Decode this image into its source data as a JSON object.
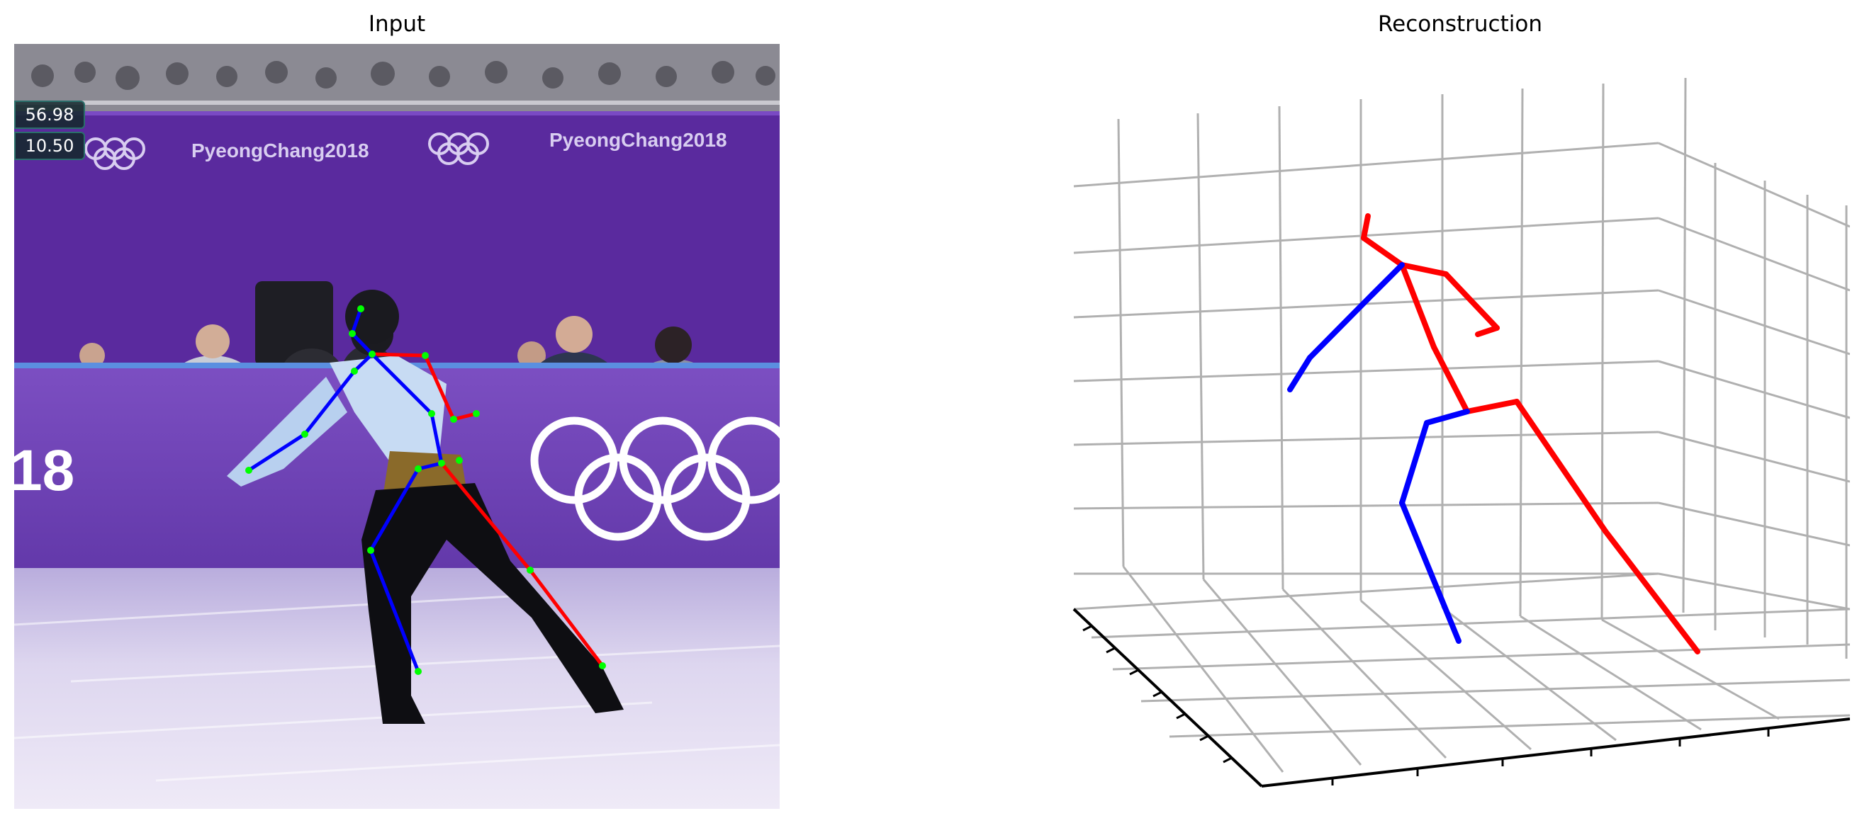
{
  "panels": {
    "left_title": "Input",
    "right_title": "Reconstruction"
  },
  "scoreboard": {
    "value_1": "56.98",
    "value_2": "10.50"
  },
  "banners": {
    "text": "PyeongChang2018",
    "board_number": "18"
  },
  "colors": {
    "left_limb": "#0000ff",
    "right_limb": "#ff0000",
    "joint": "#00ff00",
    "backdrop_purple": "#5a2a9e",
    "ice": "#dcd4ee",
    "grid": "#b0b0b0"
  },
  "icons": [
    "olympic-rings-icon"
  ]
}
